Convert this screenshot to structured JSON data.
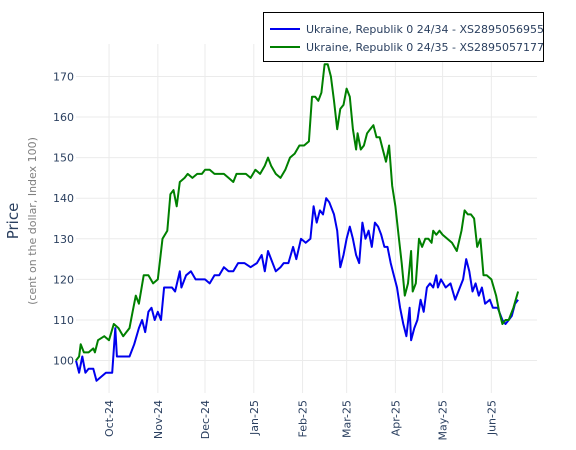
{
  "chart_data": {
    "type": "line",
    "title": "",
    "xlabel": "",
    "ylabel": "Price",
    "ylabel_sub": "(cent on the dollar, Index 100)",
    "ylim": [
      92,
      178
    ],
    "yticks": [
      100,
      110,
      120,
      130,
      140,
      150,
      160,
      170
    ],
    "xlim": [
      "2024-09-10",
      "2025-06-30"
    ],
    "xticks": [
      {
        "date": "2024-10-01",
        "label": "Oct-24"
      },
      {
        "date": "2024-11-01",
        "label": "Nov-24"
      },
      {
        "date": "2024-12-01",
        "label": "Dec-24"
      },
      {
        "date": "2025-01-01",
        "label": "Jan-25"
      },
      {
        "date": "2025-02-01",
        "label": "Feb-25"
      },
      {
        "date": "2025-03-01",
        "label": "Mar-25"
      },
      {
        "date": "2025-04-01",
        "label": "Apr-25"
      },
      {
        "date": "2025-05-01",
        "label": "May-25"
      },
      {
        "date": "2025-06-01",
        "label": "Jun-25"
      }
    ],
    "grid": true,
    "legend_position": "top-right",
    "series": [
      {
        "name": "Ukraine, Republik 0 24/34 - XS2895056955",
        "color": "#0000ee",
        "points": [
          [
            "2024-09-10",
            100
          ],
          [
            "2024-09-12",
            97
          ],
          [
            "2024-09-14",
            101
          ],
          [
            "2024-09-16",
            97
          ],
          [
            "2024-09-18",
            98
          ],
          [
            "2024-09-21",
            98
          ],
          [
            "2024-09-23",
            95
          ],
          [
            "2024-09-26",
            96
          ],
          [
            "2024-09-29",
            97
          ],
          [
            "2024-10-03",
            97
          ],
          [
            "2024-10-05",
            108
          ],
          [
            "2024-10-06",
            101
          ],
          [
            "2024-10-10",
            101
          ],
          [
            "2024-10-14",
            101
          ],
          [
            "2024-10-17",
            104
          ],
          [
            "2024-10-20",
            108
          ],
          [
            "2024-10-22",
            110
          ],
          [
            "2024-10-24",
            107
          ],
          [
            "2024-10-26",
            112
          ],
          [
            "2024-10-28",
            113
          ],
          [
            "2024-10-30",
            110
          ],
          [
            "2024-11-01",
            112
          ],
          [
            "2024-11-03",
            110
          ],
          [
            "2024-11-05",
            118
          ],
          [
            "2024-11-07",
            118
          ],
          [
            "2024-11-10",
            118
          ],
          [
            "2024-11-12",
            117
          ],
          [
            "2024-11-15",
            122
          ],
          [
            "2024-11-16",
            118
          ],
          [
            "2024-11-19",
            121
          ],
          [
            "2024-11-22",
            122
          ],
          [
            "2024-11-25",
            120
          ],
          [
            "2024-11-28",
            120
          ],
          [
            "2024-12-01",
            120
          ],
          [
            "2024-12-04",
            119
          ],
          [
            "2024-12-07",
            121
          ],
          [
            "2024-12-10",
            121
          ],
          [
            "2024-12-13",
            123
          ],
          [
            "2024-12-16",
            122
          ],
          [
            "2024-12-19",
            122
          ],
          [
            "2024-12-22",
            124
          ],
          [
            "2024-12-26",
            124
          ],
          [
            "2024-12-30",
            123
          ],
          [
            "2025-01-03",
            124
          ],
          [
            "2025-01-06",
            126
          ],
          [
            "2025-01-08",
            122
          ],
          [
            "2025-01-10",
            127
          ],
          [
            "2025-01-12",
            125
          ],
          [
            "2025-01-15",
            122
          ],
          [
            "2025-01-18",
            123
          ],
          [
            "2025-01-20",
            124
          ],
          [
            "2025-01-23",
            124
          ],
          [
            "2025-01-26",
            128
          ],
          [
            "2025-01-28",
            125
          ],
          [
            "2025-01-31",
            130
          ],
          [
            "2025-02-03",
            129
          ],
          [
            "2025-02-06",
            130
          ],
          [
            "2025-02-08",
            138
          ],
          [
            "2025-02-10",
            134
          ],
          [
            "2025-02-12",
            137
          ],
          [
            "2025-02-14",
            136
          ],
          [
            "2025-02-16",
            140
          ],
          [
            "2025-02-18",
            139
          ],
          [
            "2025-02-21",
            136
          ],
          [
            "2025-02-23",
            132
          ],
          [
            "2025-02-25",
            123
          ],
          [
            "2025-02-27",
            126
          ],
          [
            "2025-03-01",
            130
          ],
          [
            "2025-03-03",
            133
          ],
          [
            "2025-03-05",
            130
          ],
          [
            "2025-03-07",
            126
          ],
          [
            "2025-03-09",
            124
          ],
          [
            "2025-03-11",
            134
          ],
          [
            "2025-03-13",
            130
          ],
          [
            "2025-03-15",
            132
          ],
          [
            "2025-03-17",
            128
          ],
          [
            "2025-03-19",
            134
          ],
          [
            "2025-03-21",
            133
          ],
          [
            "2025-03-23",
            131
          ],
          [
            "2025-03-25",
            128
          ],
          [
            "2025-03-27",
            128
          ],
          [
            "2025-03-29",
            124
          ],
          [
            "2025-03-31",
            121
          ],
          [
            "2025-04-02",
            118
          ],
          [
            "2025-04-04",
            113
          ],
          [
            "2025-04-06",
            109
          ],
          [
            "2025-04-08",
            106
          ],
          [
            "2025-04-10",
            113
          ],
          [
            "2025-04-11",
            105
          ],
          [
            "2025-04-13",
            108
          ],
          [
            "2025-04-15",
            110
          ],
          [
            "2025-04-17",
            115
          ],
          [
            "2025-04-19",
            112
          ],
          [
            "2025-04-21",
            118
          ],
          [
            "2025-04-23",
            119
          ],
          [
            "2025-04-25",
            118
          ],
          [
            "2025-04-27",
            121
          ],
          [
            "2025-04-28",
            118
          ],
          [
            "2025-04-30",
            120
          ],
          [
            "2025-05-03",
            118
          ],
          [
            "2025-05-06",
            119
          ],
          [
            "2025-05-09",
            115
          ],
          [
            "2025-05-12",
            118
          ],
          [
            "2025-05-14",
            120
          ],
          [
            "2025-05-16",
            125
          ],
          [
            "2025-05-18",
            122
          ],
          [
            "2025-05-20",
            117
          ],
          [
            "2025-05-22",
            119
          ],
          [
            "2025-05-24",
            116
          ],
          [
            "2025-05-26",
            118
          ],
          [
            "2025-05-28",
            114
          ],
          [
            "2025-05-31",
            115
          ],
          [
            "2025-06-02",
            113
          ],
          [
            "2025-06-05",
            113
          ],
          [
            "2025-06-08",
            110
          ],
          [
            "2025-06-10",
            109
          ],
          [
            "2025-06-12",
            110
          ],
          [
            "2025-06-14",
            111
          ],
          [
            "2025-06-16",
            114
          ],
          [
            "2025-06-18",
            115
          ]
        ]
      },
      {
        "name": "Ukraine, Republik 0 24/35 - XS2895057177",
        "color": "#008000",
        "points": [
          [
            "2024-09-10",
            100
          ],
          [
            "2024-09-12",
            101
          ],
          [
            "2024-09-13",
            104
          ],
          [
            "2024-09-15",
            102
          ],
          [
            "2024-09-18",
            102
          ],
          [
            "2024-09-21",
            103
          ],
          [
            "2024-09-22",
            102
          ],
          [
            "2024-09-24",
            105
          ],
          [
            "2024-09-28",
            106
          ],
          [
            "2024-10-01",
            105
          ],
          [
            "2024-10-04",
            109
          ],
          [
            "2024-10-07",
            108
          ],
          [
            "2024-10-10",
            106
          ],
          [
            "2024-10-14",
            108
          ],
          [
            "2024-10-16",
            112
          ],
          [
            "2024-10-18",
            116
          ],
          [
            "2024-10-20",
            114
          ],
          [
            "2024-10-23",
            121
          ],
          [
            "2024-10-26",
            121
          ],
          [
            "2024-10-29",
            119
          ],
          [
            "2024-11-01",
            120
          ],
          [
            "2024-11-04",
            130
          ],
          [
            "2024-11-07",
            132
          ],
          [
            "2024-11-09",
            141
          ],
          [
            "2024-11-11",
            142
          ],
          [
            "2024-11-13",
            138
          ],
          [
            "2024-11-15",
            144
          ],
          [
            "2024-11-18",
            145
          ],
          [
            "2024-11-20",
            146
          ],
          [
            "2024-11-23",
            145
          ],
          [
            "2024-11-26",
            146
          ],
          [
            "2024-11-29",
            146
          ],
          [
            "2024-12-01",
            147
          ],
          [
            "2024-12-04",
            147
          ],
          [
            "2024-12-07",
            146
          ],
          [
            "2024-12-10",
            146
          ],
          [
            "2024-12-13",
            146
          ],
          [
            "2024-12-16",
            145
          ],
          [
            "2024-12-19",
            144
          ],
          [
            "2024-12-21",
            146
          ],
          [
            "2024-12-24",
            146
          ],
          [
            "2024-12-27",
            146
          ],
          [
            "2024-12-30",
            145
          ],
          [
            "2025-01-02",
            147
          ],
          [
            "2025-01-05",
            146
          ],
          [
            "2025-01-08",
            148
          ],
          [
            "2025-01-10",
            150
          ],
          [
            "2025-01-12",
            148
          ],
          [
            "2025-01-15",
            146
          ],
          [
            "2025-01-18",
            145
          ],
          [
            "2025-01-21",
            147
          ],
          [
            "2025-01-24",
            150
          ],
          [
            "2025-01-27",
            151
          ],
          [
            "2025-01-30",
            153
          ],
          [
            "2025-02-02",
            153
          ],
          [
            "2025-02-05",
            154
          ],
          [
            "2025-02-07",
            165
          ],
          [
            "2025-02-09",
            165
          ],
          [
            "2025-02-11",
            164
          ],
          [
            "2025-02-13",
            166
          ],
          [
            "2025-02-15",
            173
          ],
          [
            "2025-02-17",
            173
          ],
          [
            "2025-02-19",
            170
          ],
          [
            "2025-02-21",
            164
          ],
          [
            "2025-02-23",
            157
          ],
          [
            "2025-02-25",
            162
          ],
          [
            "2025-02-27",
            163
          ],
          [
            "2025-03-01",
            167
          ],
          [
            "2025-03-03",
            165
          ],
          [
            "2025-03-05",
            157
          ],
          [
            "2025-03-07",
            152
          ],
          [
            "2025-03-08",
            156
          ],
          [
            "2025-03-10",
            152
          ],
          [
            "2025-03-12",
            153
          ],
          [
            "2025-03-14",
            156
          ],
          [
            "2025-03-16",
            157
          ],
          [
            "2025-03-18",
            158
          ],
          [
            "2025-03-20",
            155
          ],
          [
            "2025-03-22",
            155
          ],
          [
            "2025-03-24",
            152
          ],
          [
            "2025-03-26",
            149
          ],
          [
            "2025-03-28",
            153
          ],
          [
            "2025-03-30",
            143
          ],
          [
            "2025-04-01",
            138
          ],
          [
            "2025-04-03",
            131
          ],
          [
            "2025-04-05",
            124
          ],
          [
            "2025-04-07",
            116
          ],
          [
            "2025-04-09",
            119
          ],
          [
            "2025-04-11",
            127
          ],
          [
            "2025-04-12",
            117
          ],
          [
            "2025-04-14",
            119
          ],
          [
            "2025-04-16",
            130
          ],
          [
            "2025-04-18",
            128
          ],
          [
            "2025-04-20",
            130
          ],
          [
            "2025-04-22",
            130
          ],
          [
            "2025-04-24",
            129
          ],
          [
            "2025-04-25",
            132
          ],
          [
            "2025-04-27",
            131
          ],
          [
            "2025-04-29",
            132
          ],
          [
            "2025-05-01",
            131
          ],
          [
            "2025-05-04",
            130
          ],
          [
            "2025-05-07",
            129
          ],
          [
            "2025-05-10",
            127
          ],
          [
            "2025-05-13",
            132
          ],
          [
            "2025-05-15",
            137
          ],
          [
            "2025-05-17",
            136
          ],
          [
            "2025-05-19",
            136
          ],
          [
            "2025-05-21",
            135
          ],
          [
            "2025-05-23",
            128
          ],
          [
            "2025-05-25",
            130
          ],
          [
            "2025-05-27",
            121
          ],
          [
            "2025-05-29",
            121
          ],
          [
            "2025-06-01",
            120
          ],
          [
            "2025-06-04",
            116
          ],
          [
            "2025-06-06",
            112
          ],
          [
            "2025-06-08",
            109
          ],
          [
            "2025-06-10",
            110
          ],
          [
            "2025-06-12",
            110
          ],
          [
            "2025-06-15",
            113
          ],
          [
            "2025-06-18",
            117
          ]
        ]
      }
    ]
  }
}
